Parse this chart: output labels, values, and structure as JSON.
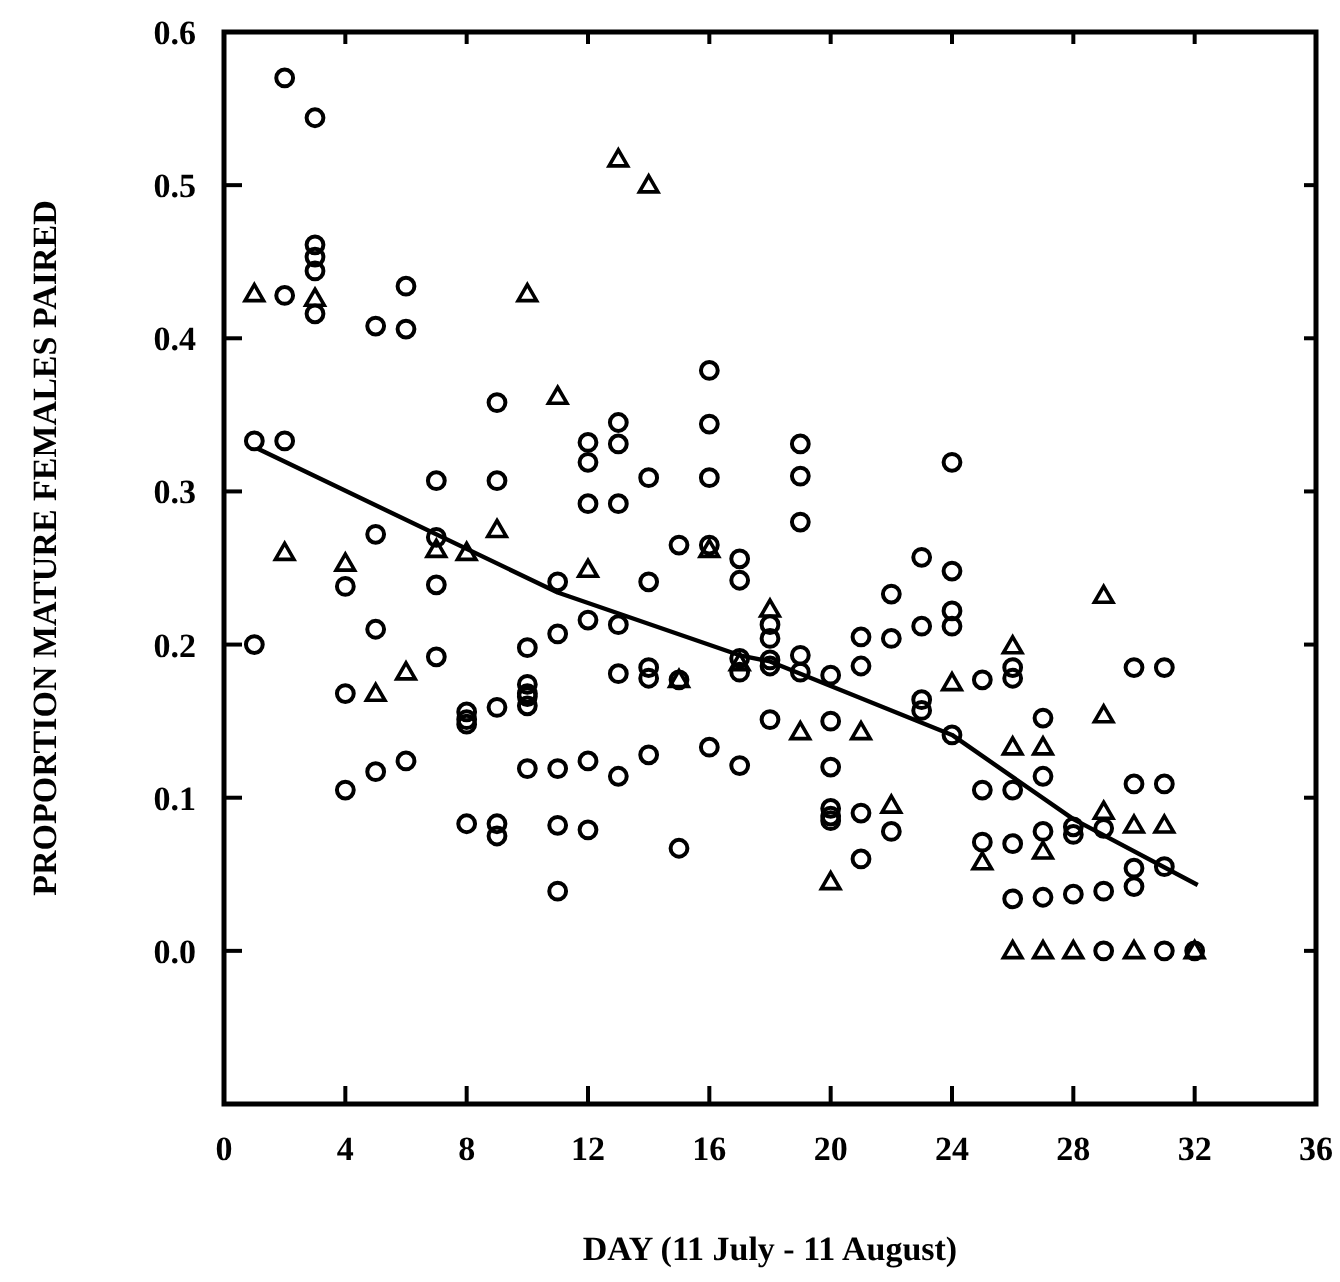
{
  "chart_data": {
    "type": "scatter",
    "xlabel": "DAY (11 July - 11 August)",
    "ylabel": "PROPORTION MATURE FEMALES PAIRED",
    "xlim": [
      0,
      36
    ],
    "xticks": [
      0,
      4,
      8,
      12,
      16,
      20,
      24,
      28,
      32,
      36
    ],
    "ylim": [
      -0.1,
      0.6
    ],
    "yticks": [
      {
        "value": 0,
        "label": "0.0"
      },
      0.1,
      0.2,
      0.3,
      0.4,
      0.5,
      0.6
    ],
    "grid": false,
    "series": [
      {
        "marker": "circle",
        "color": "#000000",
        "x": [
          1,
          1,
          2,
          2,
          2,
          3,
          3,
          3,
          3,
          3,
          4,
          4,
          4,
          5,
          5,
          5,
          5,
          6,
          6,
          6,
          7,
          7,
          7,
          7,
          8,
          8,
          8,
          8,
          9,
          9,
          9,
          9,
          9,
          10,
          10,
          10,
          10,
          10,
          10,
          11,
          11,
          11,
          11,
          11,
          12,
          12,
          12,
          12,
          12,
          12,
          13,
          13,
          13,
          13,
          13,
          13,
          14,
          14,
          14,
          14,
          14,
          15,
          15,
          15,
          16,
          16,
          16,
          16,
          16,
          17,
          17,
          17,
          17,
          17,
          18,
          18,
          18,
          18,
          18,
          19,
          19,
          19,
          19,
          19,
          20,
          20,
          20,
          20,
          20,
          20,
          21,
          21,
          21,
          21,
          22,
          22,
          22,
          23,
          23,
          23,
          23,
          24,
          24,
          24,
          24,
          24,
          25,
          25,
          25,
          26,
          26,
          26,
          26,
          26,
          27,
          27,
          27,
          27,
          28,
          28,
          28,
          29,
          29,
          29,
          30,
          30,
          30,
          30,
          31,
          31,
          31,
          31,
          32
        ],
        "values": [
          0.333,
          0.2,
          0.57,
          0.428,
          0.333,
          0.544,
          0.461,
          0.453,
          0.444,
          0.416,
          0.238,
          0.168,
          0.105,
          0.408,
          0.272,
          0.21,
          0.117,
          0.434,
          0.406,
          0.124,
          0.307,
          0.27,
          0.239,
          0.192,
          0.156,
          0.151,
          0.148,
          0.083,
          0.358,
          0.307,
          0.159,
          0.083,
          0.075,
          0.198,
          0.174,
          0.168,
          0.166,
          0.16,
          0.119,
          0.241,
          0.207,
          0.119,
          0.082,
          0.039,
          0.332,
          0.319,
          0.292,
          0.216,
          0.124,
          0.079,
          0.345,
          0.331,
          0.292,
          0.213,
          0.181,
          0.114,
          0.309,
          0.241,
          0.185,
          0.178,
          0.128,
          0.265,
          0.177,
          0.067,
          0.379,
          0.344,
          0.309,
          0.265,
          0.133,
          0.256,
          0.242,
          0.191,
          0.182,
          0.121,
          0.213,
          0.204,
          0.19,
          0.186,
          0.151,
          0.331,
          0.31,
          0.28,
          0.193,
          0.182,
          0.18,
          0.15,
          0.12,
          0.093,
          0.088,
          0.085,
          0.205,
          0.186,
          0.09,
          0.06,
          0.233,
          0.204,
          0.078,
          0.257,
          0.212,
          0.164,
          0.157,
          0.319,
          0.248,
          0.222,
          0.212,
          0.141,
          0.177,
          0.105,
          0.071,
          0.185,
          0.178,
          0.105,
          0.07,
          0.034,
          0.152,
          0.114,
          0.078,
          0.035,
          0.081,
          0.076,
          0.037,
          0.08,
          0.039,
          0,
          0.185,
          0.109,
          0.054,
          0.042,
          0.185,
          0.109,
          0.055,
          0,
          0
        ]
      },
      {
        "marker": "triangle",
        "color": "#000000",
        "x": [
          1,
          2,
          3,
          4,
          5,
          6,
          7,
          8,
          9,
          10,
          11,
          12,
          13,
          14,
          15,
          16,
          17,
          18,
          19,
          20,
          21,
          22,
          24,
          25,
          26,
          26,
          26,
          27,
          27,
          27,
          28,
          29,
          29,
          29,
          30,
          30,
          31,
          32
        ],
        "values": [
          0.429,
          0.26,
          0.426,
          0.253,
          0.168,
          0.182,
          0.262,
          0.26,
          0.275,
          0.429,
          0.362,
          0.249,
          0.517,
          0.5,
          0.177,
          0.262,
          0.188,
          0.223,
          0.143,
          0.045,
          0.143,
          0.095,
          0.175,
          0.058,
          0.199,
          0.133,
          0,
          0.133,
          0.065,
          0,
          0,
          0.232,
          0.154,
          0.091,
          0.082,
          0,
          0.082,
          0
        ]
      },
      {
        "type": "line",
        "marker": "none",
        "line_style": "solid",
        "color": "#000000",
        "x": [
          1.1,
          11,
          17,
          18,
          24,
          28,
          32.1
        ],
        "values": [
          0.328,
          0.234,
          0.193,
          0.189,
          0.141,
          0.086,
          0.043
        ]
      }
    ]
  }
}
